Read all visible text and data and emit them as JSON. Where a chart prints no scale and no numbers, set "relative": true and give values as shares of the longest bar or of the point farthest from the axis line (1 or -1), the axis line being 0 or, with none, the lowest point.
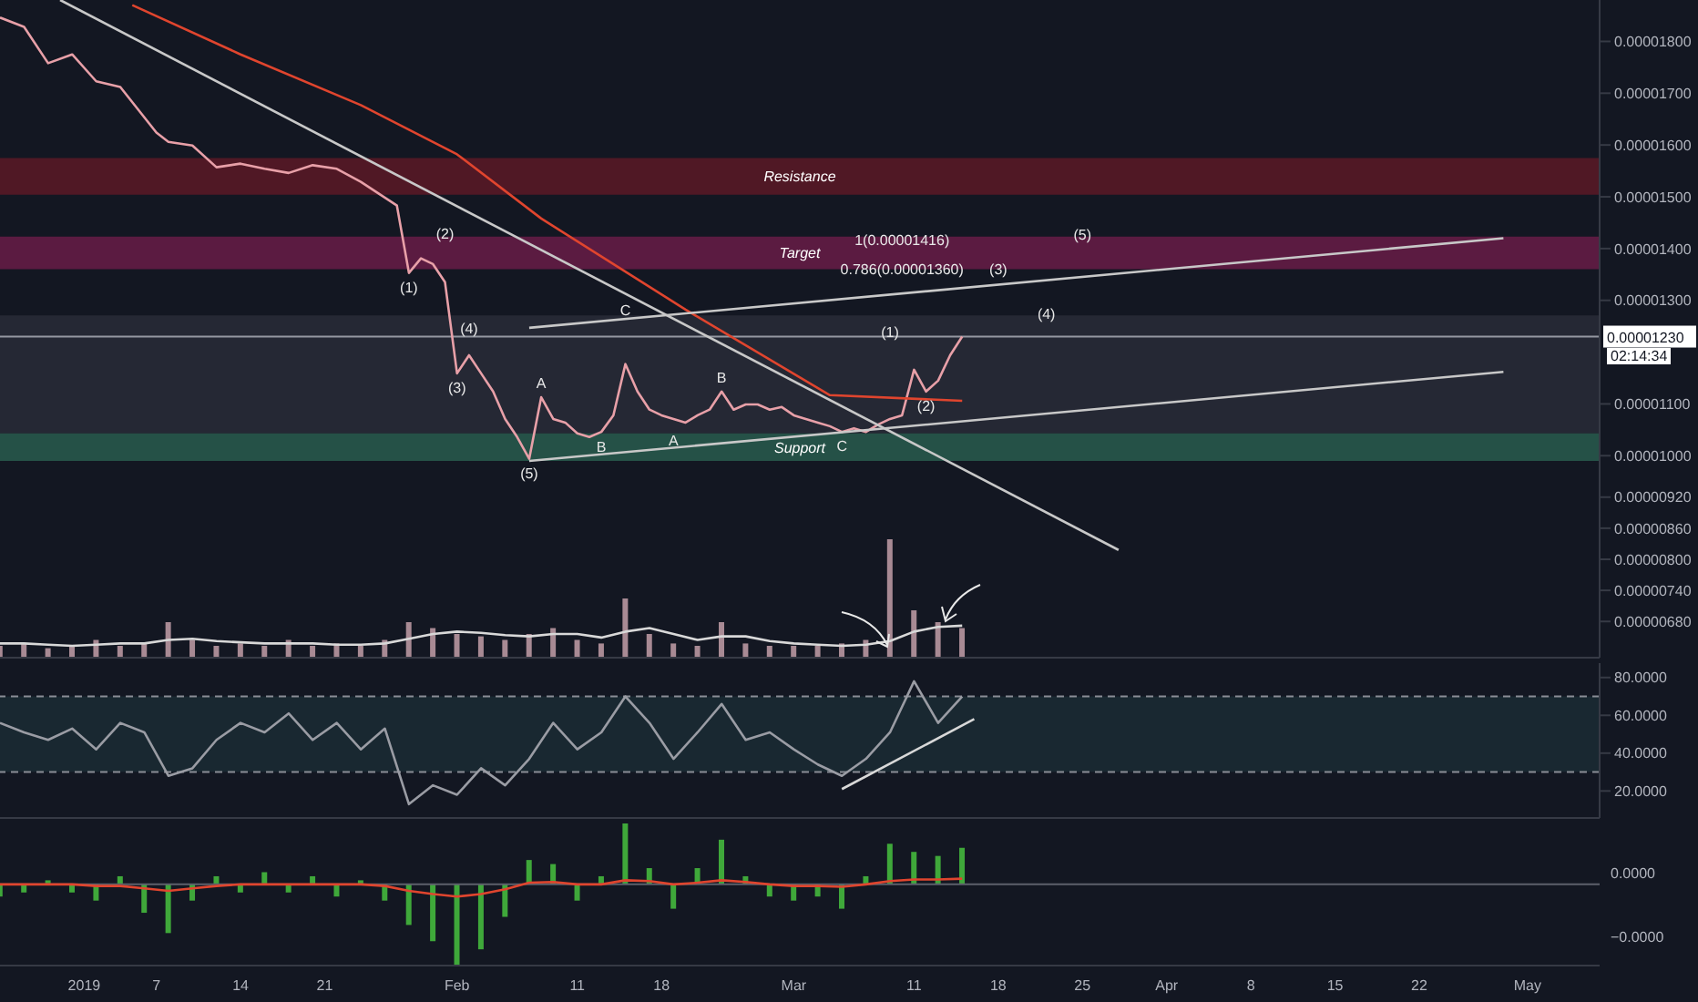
{
  "chart_data": [
    {
      "type": "line",
      "xlim": [
        "2018-12-25",
        "2019-05-07"
      ],
      "ylim": [
        6.1e-06,
        1.88e-05
      ],
      "tick_labels": "y",
      "yticks": [
        {
          "value": 1.8e-05,
          "label": "0.00001800"
        },
        {
          "value": 1.7e-05,
          "label": "0.00001700"
        },
        {
          "value": 1.6e-05,
          "label": "0.00001600"
        },
        {
          "value": 1.5e-05,
          "label": "0.00001500"
        },
        {
          "value": 1.4e-05,
          "label": "0.00001400"
        },
        {
          "value": 1.3e-05,
          "label": "0.00001300"
        },
        {
          "value": 1.1e-05,
          "label": "0.00001100"
        },
        {
          "value": 1e-05,
          "label": "0.00001000"
        },
        {
          "value": 9.2e-06,
          "label": "0.00000920"
        },
        {
          "value": 8.6e-06,
          "label": "0.00000860"
        },
        {
          "value": 8e-06,
          "label": "0.00000800"
        },
        {
          "value": 7.4e-06,
          "label": "0.00000740"
        },
        {
          "value": 6.8e-06,
          "label": "0.00000680"
        }
      ],
      "series": [
        {
          "color": "#e8a0a8",
          "x": [
            "2018-12-25",
            "2018-12-27",
            "2018-12-29",
            "2018-12-31",
            "2019-01-02",
            "2019-01-04",
            "2019-01-07",
            "2019-01-08",
            "2019-01-10",
            "2019-01-12",
            "2019-01-14",
            "2019-01-16",
            "2019-01-18",
            "2019-01-20",
            "2019-01-22",
            "2019-01-24",
            "2019-01-27",
            "2019-01-28",
            "2019-01-29",
            "2019-01-30",
            "2019-01-31",
            "2019-02-01",
            "2019-02-02",
            "2019-02-03",
            "2019-02-04",
            "2019-02-05",
            "2019-02-06",
            "2019-02-07",
            "2019-02-08",
            "2019-02-09",
            "2019-02-10",
            "2019-02-11",
            "2019-02-12",
            "2019-02-13",
            "2019-02-14",
            "2019-02-15",
            "2019-02-16",
            "2019-02-17",
            "2019-02-18",
            "2019-02-19",
            "2019-02-20",
            "2019-02-21",
            "2019-02-22",
            "2019-02-23",
            "2019-02-24",
            "2019-02-25",
            "2019-02-26",
            "2019-02-27",
            "2019-02-28",
            "2019-03-01",
            "2019-03-02",
            "2019-03-03",
            "2019-03-04",
            "2019-03-05",
            "2019-03-06",
            "2019-03-07",
            "2019-03-08",
            "2019-03-09",
            "2019-03-10",
            "2019-03-11",
            "2019-03-12",
            "2019-03-13",
            "2019-03-14",
            "2019-03-15"
          ],
          "values": [
            1.846e-05,
            1.828e-05,
            1.758e-05,
            1.775e-05,
            1.723e-05,
            1.712e-05,
            1.624e-05,
            1.606e-05,
            1.599e-05,
            1.557e-05,
            1.564e-05,
            1.554e-05,
            1.546e-05,
            1.561e-05,
            1.554e-05,
            1.529e-05,
            1.483e-05,
            1.353e-05,
            1.381e-05,
            1.37e-05,
            1.335e-05,
            1.159e-05,
            1.194e-05,
            1.159e-05,
            1.124e-05,
            1.071e-05,
            1.036e-05,
            9.94e-06,
            1.113e-05,
            1.071e-05,
            1.064e-05,
            1.043e-05,
            1.036e-05,
            1.046e-05,
            1.078e-05,
            1.177e-05,
            1.124e-05,
            1.089e-05,
            1.078e-05,
            1.071e-05,
            1.064e-05,
            1.078e-05,
            1.089e-05,
            1.124e-05,
            1.089e-05,
            1.099e-05,
            1.099e-05,
            1.089e-05,
            1.094e-05,
            1.078e-05,
            1.071e-05,
            1.064e-05,
            1.057e-05,
            1.046e-05,
            1.053e-05,
            1.046e-05,
            1.06e-05,
            1.071e-05,
            1.078e-05,
            1.166e-05,
            1.124e-05,
            1.145e-05,
            1.194e-05,
            1.23e-05
          ]
        },
        {
          "color": "#e0452e",
          "x": [
            "2019-01-05",
            "2019-01-14",
            "2019-01-24",
            "2019-02-01",
            "2019-02-08",
            "2019-02-20",
            "2019-03-04",
            "2019-03-15"
          ],
          "values": [
            1.87e-05,
            1.775e-05,
            1.677e-05,
            1.582e-05,
            1.458e-05,
            1.282e-05,
            1.117e-05,
            1.106e-05
          ]
        },
        {
          "color": "#c8c8c8",
          "x": [
            "2018-12-30",
            "2019-03-28"
          ],
          "values": [
            1.88e-05,
            8.18e-06
          ]
        },
        {
          "color": "#c8c8c8",
          "x": [
            "2019-02-07",
            "2019-04-29"
          ],
          "values": [
            9.9e-06,
            1.162e-05
          ]
        },
        {
          "color": "#c8c8c8",
          "x": [
            "2019-02-07",
            "2019-04-29"
          ],
          "values": [
            1.247e-05,
            1.42e-05
          ]
        }
      ],
      "bands": [
        {
          "axis": "y",
          "from": 1.504e-05,
          "to": 1.575e-05,
          "label": "Resistance",
          "color": "#6b1a26"
        },
        {
          "axis": "y",
          "from": 1.36e-05,
          "to": 1.423e-05,
          "label": "Target",
          "color": "#7a1e4e"
        },
        {
          "axis": "y",
          "from": 1.043e-05,
          "to": 1.271e-05,
          "color": "#2e313c"
        },
        {
          "axis": "y",
          "from": 9.9e-06,
          "to": 1.043e-05,
          "label": "Support",
          "color": "#2e6b57"
        }
      ],
      "ref_lines": [
        {
          "axis": "y",
          "value": 1.23e-05,
          "label": "0.00001230",
          "color": "#9598a1"
        }
      ],
      "annotations": [
        {
          "text": "(1)",
          "x": "2019-01-28",
          "y": 1.353e-05
        },
        {
          "text": "(2)",
          "x": "2019-01-31",
          "y": 1.43e-05
        },
        {
          "text": "(3)",
          "x": "2019-02-01",
          "y": 1.159e-05
        },
        {
          "text": "(4)",
          "x": "2019-02-02",
          "y": 1.247e-05
        },
        {
          "text": "(5)",
          "x": "2019-02-07",
          "y": 9.94e-06
        },
        {
          "text": "A",
          "x": "2019-02-08",
          "y": 1.113e-05
        },
        {
          "text": "B",
          "x": "2019-02-13",
          "y": 1.018e-05
        },
        {
          "text": "C",
          "x": "2019-02-15",
          "y": 1.282e-05
        },
        {
          "text": "A",
          "x": "2019-02-19",
          "y": 1.029e-05
        },
        {
          "text": "B",
          "x": "2019-02-23",
          "y": 1.124e-05
        },
        {
          "text": "C",
          "x": "2019-03-05",
          "y": 1.046e-05
        },
        {
          "text": "(1)",
          "x": "2019-03-09",
          "y": 1.24e-05
        },
        {
          "text": "(2)",
          "x": "2019-03-12",
          "y": 1.124e-05
        },
        {
          "text": "(3)",
          "x": "2019-03-18",
          "y": 1.36e-05
        },
        {
          "text": "(4)",
          "x": "2019-03-22",
          "y": 1.275e-05
        },
        {
          "text": "(5)",
          "x": "2019-03-25",
          "y": 1.427e-05
        },
        {
          "text": "1(0.00001416)",
          "x": "2019-03-10",
          "y": 1.416e-05
        },
        {
          "text": "0.786(0.00001360)",
          "x": "2019-03-10",
          "y": 1.36e-05
        },
        "02:14:34"
      ]
    },
    {
      "type": "bar",
      "relative": true,
      "tick_labels": false,
      "xlim": [
        "2018-12-25",
        "2019-05-07"
      ],
      "x": [
        "2018-12-25",
        "2018-12-27",
        "2018-12-29",
        "2018-12-31",
        "2019-01-02",
        "2019-01-04",
        "2019-01-06",
        "2019-01-08",
        "2019-01-10",
        "2019-01-12",
        "2019-01-14",
        "2019-01-16",
        "2019-01-18",
        "2019-01-20",
        "2019-01-22",
        "2019-01-24",
        "2019-01-26",
        "2019-01-28",
        "2019-01-30",
        "2019-02-01",
        "2019-02-03",
        "2019-02-05",
        "2019-02-07",
        "2019-02-09",
        "2019-02-11",
        "2019-02-13",
        "2019-02-15",
        "2019-02-17",
        "2019-02-19",
        "2019-02-21",
        "2019-02-23",
        "2019-02-25",
        "2019-02-27",
        "2019-03-01",
        "2019-03-03",
        "2019-03-05",
        "2019-03-07",
        "2019-03-09",
        "2019-03-11",
        "2019-03-13",
        "2019-03-15"
      ],
      "series": [
        {
          "color": "#a88a94",
          "values": [
            0.1,
            0.12,
            0.08,
            0.1,
            0.15,
            0.1,
            0.12,
            0.3,
            0.15,
            0.1,
            0.12,
            0.1,
            0.15,
            0.1,
            0.12,
            0.1,
            0.15,
            0.3,
            0.25,
            0.2,
            0.18,
            0.15,
            0.2,
            0.25,
            0.15,
            0.12,
            0.5,
            0.2,
            0.12,
            0.1,
            0.3,
            0.12,
            0.1,
            0.1,
            0.1,
            0.12,
            0.15,
            1,
            0.4,
            0.3,
            0.25
          ]
        },
        {
          "type": "line",
          "color": "#d8d8d8",
          "values": [
            0.12,
            0.12,
            0.11,
            0.1,
            0.11,
            0.12,
            0.12,
            0.15,
            0.16,
            0.14,
            0.13,
            0.12,
            0.12,
            0.12,
            0.11,
            0.11,
            0.12,
            0.16,
            0.2,
            0.22,
            0.21,
            0.19,
            0.18,
            0.2,
            0.2,
            0.17,
            0.22,
            0.25,
            0.2,
            0.15,
            0.18,
            0.18,
            0.14,
            0.12,
            0.11,
            0.1,
            0.11,
            0.14,
            0.22,
            0.26,
            0.27
          ]
        }
      ]
    },
    {
      "type": "line",
      "tick_labels": "y",
      "xlim": [
        "2018-12-25",
        "2019-05-07"
      ],
      "ylim": [
        5.7,
        87.6
      ],
      "yticks": [
        {
          "value": 80,
          "label": "80.0000"
        },
        {
          "value": 60,
          "label": "60.0000"
        },
        {
          "value": 40,
          "label": "40.0000"
        },
        {
          "value": 20,
          "label": "20.0000"
        }
      ],
      "x": [
        "2018-12-25",
        "2018-12-27",
        "2018-12-29",
        "2018-12-31",
        "2019-01-02",
        "2019-01-04",
        "2019-01-06",
        "2019-01-08",
        "2019-01-10",
        "2019-01-12",
        "2019-01-14",
        "2019-01-16",
        "2019-01-18",
        "2019-01-20",
        "2019-01-22",
        "2019-01-24",
        "2019-01-26",
        "2019-01-28",
        "2019-01-30",
        "2019-02-01",
        "2019-02-03",
        "2019-02-05",
        "2019-02-07",
        "2019-02-09",
        "2019-02-11",
        "2019-02-13",
        "2019-02-15",
        "2019-02-17",
        "2019-02-19",
        "2019-02-21",
        "2019-02-23",
        "2019-02-25",
        "2019-02-27",
        "2019-03-01",
        "2019-03-03",
        "2019-03-05",
        "2019-03-07",
        "2019-03-09",
        "2019-03-11",
        "2019-03-13",
        "2019-03-15"
      ],
      "series": [
        {
          "color": "#9a9ca4",
          "values": [
            56,
            51,
            47,
            53,
            42,
            56,
            51,
            28,
            32,
            47,
            56,
            51,
            61,
            47,
            56,
            42,
            53,
            13,
            23,
            18,
            32,
            23,
            37,
            56,
            42,
            51,
            70,
            56,
            37,
            51,
            66,
            47,
            51,
            42,
            34,
            28,
            37,
            51,
            78,
            56,
            70
          ]
        },
        {
          "color": "#d8d8d8",
          "x": [
            "2019-03-05",
            "2019-03-16"
          ],
          "values": [
            21,
            58
          ]
        }
      ],
      "bands": [
        {
          "axis": "y",
          "from": 30,
          "to": 70,
          "color": "#1c3038"
        }
      ],
      "ref_lines": [
        {
          "axis": "y",
          "value": 70,
          "color": "#8a8d96",
          "line_style": "dashed"
        },
        {
          "axis": "y",
          "value": 30,
          "color": "#8a8d96",
          "line_style": "dashed"
        }
      ]
    },
    {
      "type": "bar",
      "relative": true,
      "tick_labels": "x",
      "xlim": [
        "2018-12-25",
        "2019-05-07"
      ],
      "xticks": [
        {
          "value": "2019-01-01",
          "label": "2019"
        },
        {
          "value": "2019-01-07",
          "label": "7"
        },
        {
          "value": "2019-01-14",
          "label": "14"
        },
        {
          "value": "2019-01-21",
          "label": "21"
        },
        {
          "value": "2019-02-01",
          "label": "Feb"
        },
        {
          "value": "2019-02-11",
          "label": "11"
        },
        {
          "value": "2019-02-18",
          "label": "18"
        },
        {
          "value": "2019-03-01",
          "label": "Mar"
        },
        {
          "value": "2019-03-11",
          "label": "11"
        },
        {
          "value": "2019-03-18",
          "label": "18"
        },
        {
          "value": "2019-03-25",
          "label": "25"
        },
        {
          "value": "2019-04-01",
          "label": "Apr"
        },
        {
          "value": "2019-04-08",
          "label": "8"
        },
        {
          "value": "2019-04-15",
          "label": "15"
        },
        {
          "value": "2019-04-22",
          "label": "22"
        },
        {
          "value": "2019-05-01",
          "label": "May"
        }
      ],
      "x": [
        "2018-12-25",
        "2018-12-27",
        "2018-12-29",
        "2018-12-31",
        "2019-01-02",
        "2019-01-04",
        "2019-01-06",
        "2019-01-08",
        "2019-01-10",
        "2019-01-12",
        "2019-01-14",
        "2019-01-16",
        "2019-01-18",
        "2019-01-20",
        "2019-01-22",
        "2019-01-24",
        "2019-01-26",
        "2019-01-28",
        "2019-01-30",
        "2019-02-01",
        "2019-02-03",
        "2019-02-05",
        "2019-02-07",
        "2019-02-09",
        "2019-02-11",
        "2019-02-13",
        "2019-02-15",
        "2019-02-17",
        "2019-02-19",
        "2019-02-21",
        "2019-02-23",
        "2019-02-25",
        "2019-02-27",
        "2019-03-01",
        "2019-03-03",
        "2019-03-05",
        "2019-03-07",
        "2019-03-09",
        "2019-03-11",
        "2019-03-13",
        "2019-03-15"
      ],
      "series": [
        {
          "color": "#3fa83a",
          "values": [
            -0.15,
            -0.1,
            0.05,
            -0.1,
            -0.2,
            0.1,
            -0.35,
            -0.6,
            -0.2,
            0.1,
            -0.1,
            0.15,
            -0.1,
            0.1,
            -0.15,
            0.05,
            -0.2,
            -0.5,
            -0.7,
            -1,
            -0.8,
            -0.4,
            0.3,
            0.25,
            -0.2,
            0.1,
            0.75,
            0.2,
            -0.3,
            0.2,
            0.55,
            0.1,
            -0.15,
            -0.2,
            -0.15,
            -0.3,
            0.1,
            0.5,
            0.4,
            0.35,
            0.45
          ]
        },
        {
          "type": "line",
          "color": "#e0452e",
          "values": [
            0,
            0,
            0,
            0,
            -0.02,
            -0.02,
            -0.05,
            -0.08,
            -0.05,
            -0.02,
            0,
            0,
            0,
            0,
            0,
            0,
            -0.02,
            -0.08,
            -0.12,
            -0.15,
            -0.12,
            -0.06,
            0.02,
            0.03,
            0,
            0,
            0.05,
            0.04,
            0,
            0.02,
            0.05,
            0.03,
            0,
            -0.02,
            -0.02,
            -0.03,
            0,
            0.04,
            0.06,
            0.06,
            0.07
          ]
        }
      ],
      "annotations": [
        "0.0000",
        "−0.0000"
      ]
    }
  ]
}
